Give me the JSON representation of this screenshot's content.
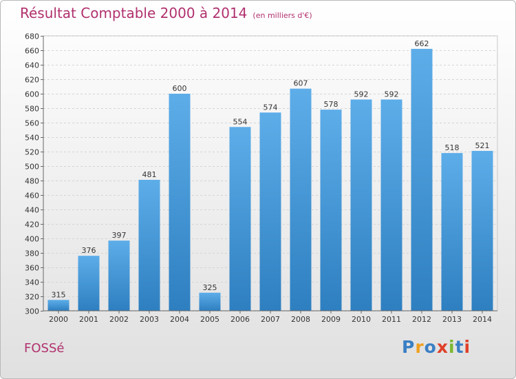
{
  "header": {
    "title": "Résultat Comptable 2000 à 2014",
    "subtitle": "(en milliers d'€)"
  },
  "footer": {
    "location": "FOSSé",
    "brand": [
      "P",
      "r",
      "o",
      "x",
      "i",
      "t",
      "i"
    ]
  },
  "colors": {
    "title": "#b0306e",
    "bar_light": "#5dade9",
    "bar_dark": "#2e7fc0",
    "brand": [
      "#3a7fc4",
      "#f0a020",
      "#3a7fc4",
      "#e0402a",
      "#7ab830",
      "#3a7fc4",
      "#e0402a"
    ]
  },
  "chart_data": {
    "type": "bar",
    "title": "Résultat Comptable 2000 à 2014",
    "categories": [
      "2000",
      "2001",
      "2002",
      "2003",
      "2004",
      "2005",
      "2006",
      "2007",
      "2008",
      "2009",
      "2010",
      "2011",
      "2012",
      "2013",
      "2014"
    ],
    "values": [
      315,
      376,
      397,
      481,
      600,
      325,
      554,
      574,
      607,
      578,
      592,
      592,
      662,
      518,
      521
    ],
    "xlabel": "",
    "ylabel": "",
    "ylim": [
      300,
      680
    ],
    "yticks": [
      300,
      320,
      340,
      360,
      380,
      400,
      420,
      440,
      460,
      480,
      500,
      520,
      540,
      560,
      580,
      600,
      620,
      640,
      660,
      680
    ],
    "grid": true
  }
}
